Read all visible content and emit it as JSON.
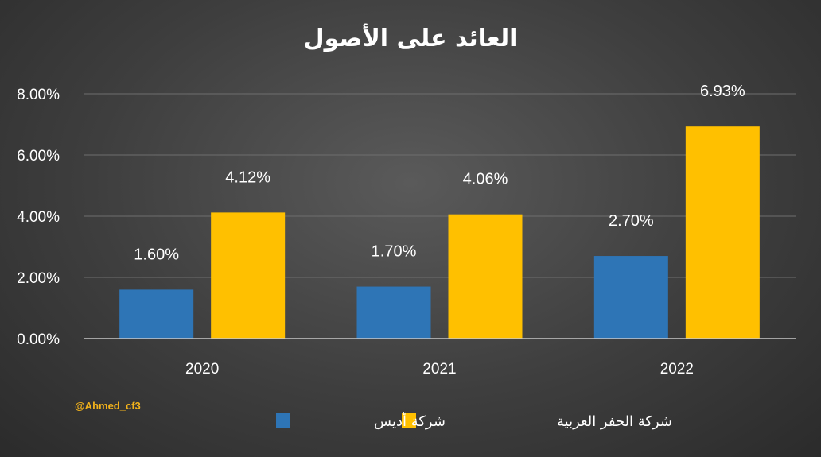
{
  "chart_data": {
    "type": "bar",
    "title": "العائد على الأصول",
    "categories": [
      "2020",
      "2021",
      "2022"
    ],
    "series": [
      {
        "name": "شركة أديس",
        "values": [
          1.6,
          1.7,
          2.7
        ],
        "labels": [
          "1.60%",
          "1.70%",
          "2.70%"
        ],
        "color": "#2e75b6"
      },
      {
        "name": "شركة الحفر العربية",
        "values": [
          4.12,
          4.06,
          6.93
        ],
        "labels": [
          "4.12%",
          "4.06%",
          "6.93%"
        ],
        "color": "#ffc000"
      }
    ],
    "ylim": [
      0,
      8
    ],
    "yticks": [
      0,
      2,
      4,
      6,
      8
    ],
    "ytick_labels": [
      "0.00%",
      "2.00%",
      "4.00%",
      "6.00%",
      "8.00%"
    ],
    "grid": true,
    "legend_position": "bottom"
  },
  "watermark": "@Ahmed_cf3"
}
